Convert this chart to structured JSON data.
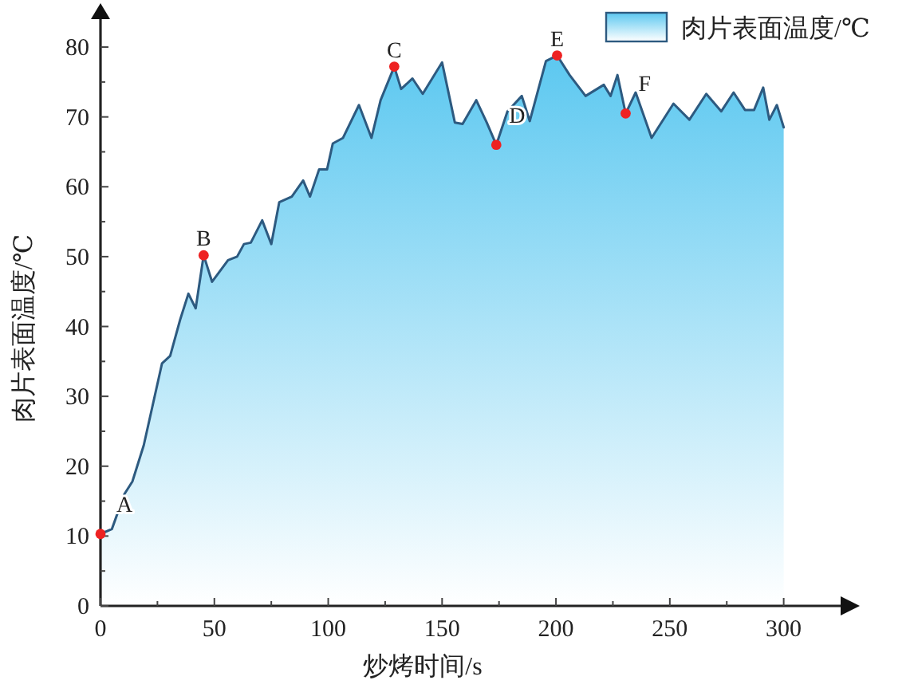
{
  "chart_data": {
    "type": "area",
    "xlabel": "炒烤时间/s",
    "ylabel": "肉片表面温度/℃",
    "xlim": [
      0,
      325
    ],
    "ylim": [
      0,
      84
    ],
    "xticks": [
      0,
      {
        "value": 25,
        "label": null
      },
      50,
      {
        "value": 75,
        "label": null
      },
      100,
      {
        "value": 125,
        "label": null
      },
      150,
      {
        "value": 175,
        "label": null
      },
      200,
      {
        "value": 225,
        "label": null
      },
      250,
      {
        "value": 275,
        "label": null
      },
      300
    ],
    "yticks": [
      0,
      {
        "value": 5,
        "label": null
      },
      10,
      {
        "value": 15,
        "label": null
      },
      20,
      {
        "value": 25,
        "label": null
      },
      30,
      {
        "value": 35,
        "label": null
      },
      40,
      {
        "value": 45,
        "label": null
      },
      50,
      {
        "value": 55,
        "label": null
      },
      60,
      {
        "value": 65,
        "label": null
      },
      70,
      {
        "value": 75,
        "label": null
      },
      80
    ],
    "grid": false,
    "legend": "top right",
    "marker": "none",
    "line_style": "solid",
    "series": [
      {
        "name": "肉片表面温度/℃",
        "color": "#5cc8f0",
        "x": [
          0,
          5,
          10.5,
          14,
          19,
          27,
          30.6,
          35,
          38.6,
          41.8,
          45.3,
          49,
          56,
          60,
          63,
          66,
          71,
          75,
          78.5,
          84,
          89,
          92,
          96,
          99.5,
          102,
          106.5,
          113.5,
          119,
          123,
          129,
          132,
          137,
          141.5,
          150,
          155.6,
          159,
          165,
          169.6,
          173.8,
          178.7,
          185,
          188.5,
          195.6,
          200.5,
          206,
          213,
          221,
          224,
          227,
          230.6,
          235,
          242,
          251.6,
          258.6,
          266,
          272.6,
          278,
          283,
          287,
          291,
          293.7,
          297,
          300
        ],
        "values": [
          10.3,
          11,
          16,
          17.8,
          23,
          34.7,
          35.8,
          41,
          44.7,
          42.6,
          50.2,
          46.4,
          49.5,
          50,
          51.8,
          52,
          55.2,
          51.8,
          57.8,
          58.6,
          60.9,
          58.6,
          62.5,
          62.5,
          66.2,
          67,
          71.7,
          67,
          72.4,
          77.2,
          74,
          75.5,
          73.3,
          77.8,
          69.2,
          69,
          72.4,
          69.2,
          66,
          70.8,
          73,
          69.4,
          78,
          78.8,
          76,
          73,
          74.6,
          73,
          76,
          70.5,
          73.5,
          67,
          71.9,
          69.6,
          73.3,
          70.8,
          73.5,
          71,
          71,
          74.2,
          69.6,
          71.7,
          68.5
        ]
      },
      {
        "type": "scatter",
        "color": "#ee2222",
        "marker": "circle",
        "x": [
          0,
          45.3,
          129,
          173.8,
          200.5,
          230.6
        ],
        "values": [
          10.3,
          50.2,
          77.2,
          66,
          78.8,
          70.5
        ]
      }
    ],
    "annotations": [
      {
        "text": "A",
        "x": 0,
        "y": 10.3
      },
      {
        "text": "B",
        "x": 45.3,
        "y": 50.2
      },
      {
        "text": "C",
        "x": 129,
        "y": 77.2
      },
      {
        "text": "D",
        "x": 173.8,
        "y": 66
      },
      {
        "text": "E",
        "x": 200.5,
        "y": 78.8
      },
      {
        "text": "F",
        "x": 230.6,
        "y": 70.5
      }
    ]
  }
}
